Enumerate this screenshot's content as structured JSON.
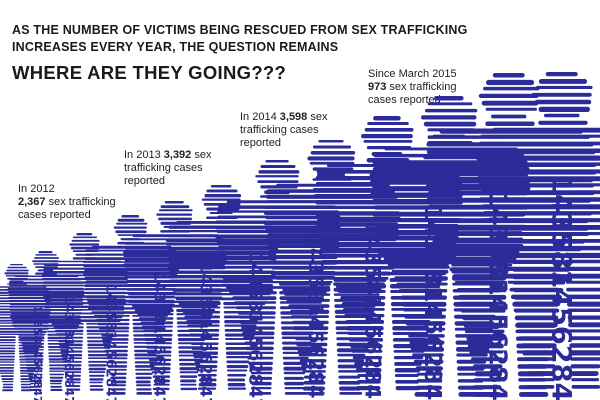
{
  "headline": {
    "line1": "AS THE NUMBER OF VICTIMS BEING RESCUED FROM SEX TRAFFICKING",
    "line2": "INCREASES EVERY YEAR, THE  QUESTION REMAINS",
    "question": "WHERE ARE THEY GOING???"
  },
  "annotations": [
    {
      "pre": "In 2012",
      "number": "2,367",
      "post_same_line": " sex trafficking",
      "post": "cases reported"
    },
    {
      "pre": "In 2013",
      "number": "3,392",
      "post_same_line": " sex",
      "post": "trafficking cases reported"
    },
    {
      "pre": "In 2014",
      "number": "3,598",
      "post_same_line": " sex",
      "post": "trafficking cases reported"
    },
    {
      "pre": "Since March 2015",
      "number": "973",
      "post_same_line": " sex trafficking",
      "post": "cases reported"
    }
  ],
  "figure_text": "143581",
  "figure_text_lower": "456",
  "figure_text_bottom": "2847",
  "colors": {
    "figure": "#2b2b9a",
    "background": "#ffffff",
    "text": "#1a1a1a"
  }
}
